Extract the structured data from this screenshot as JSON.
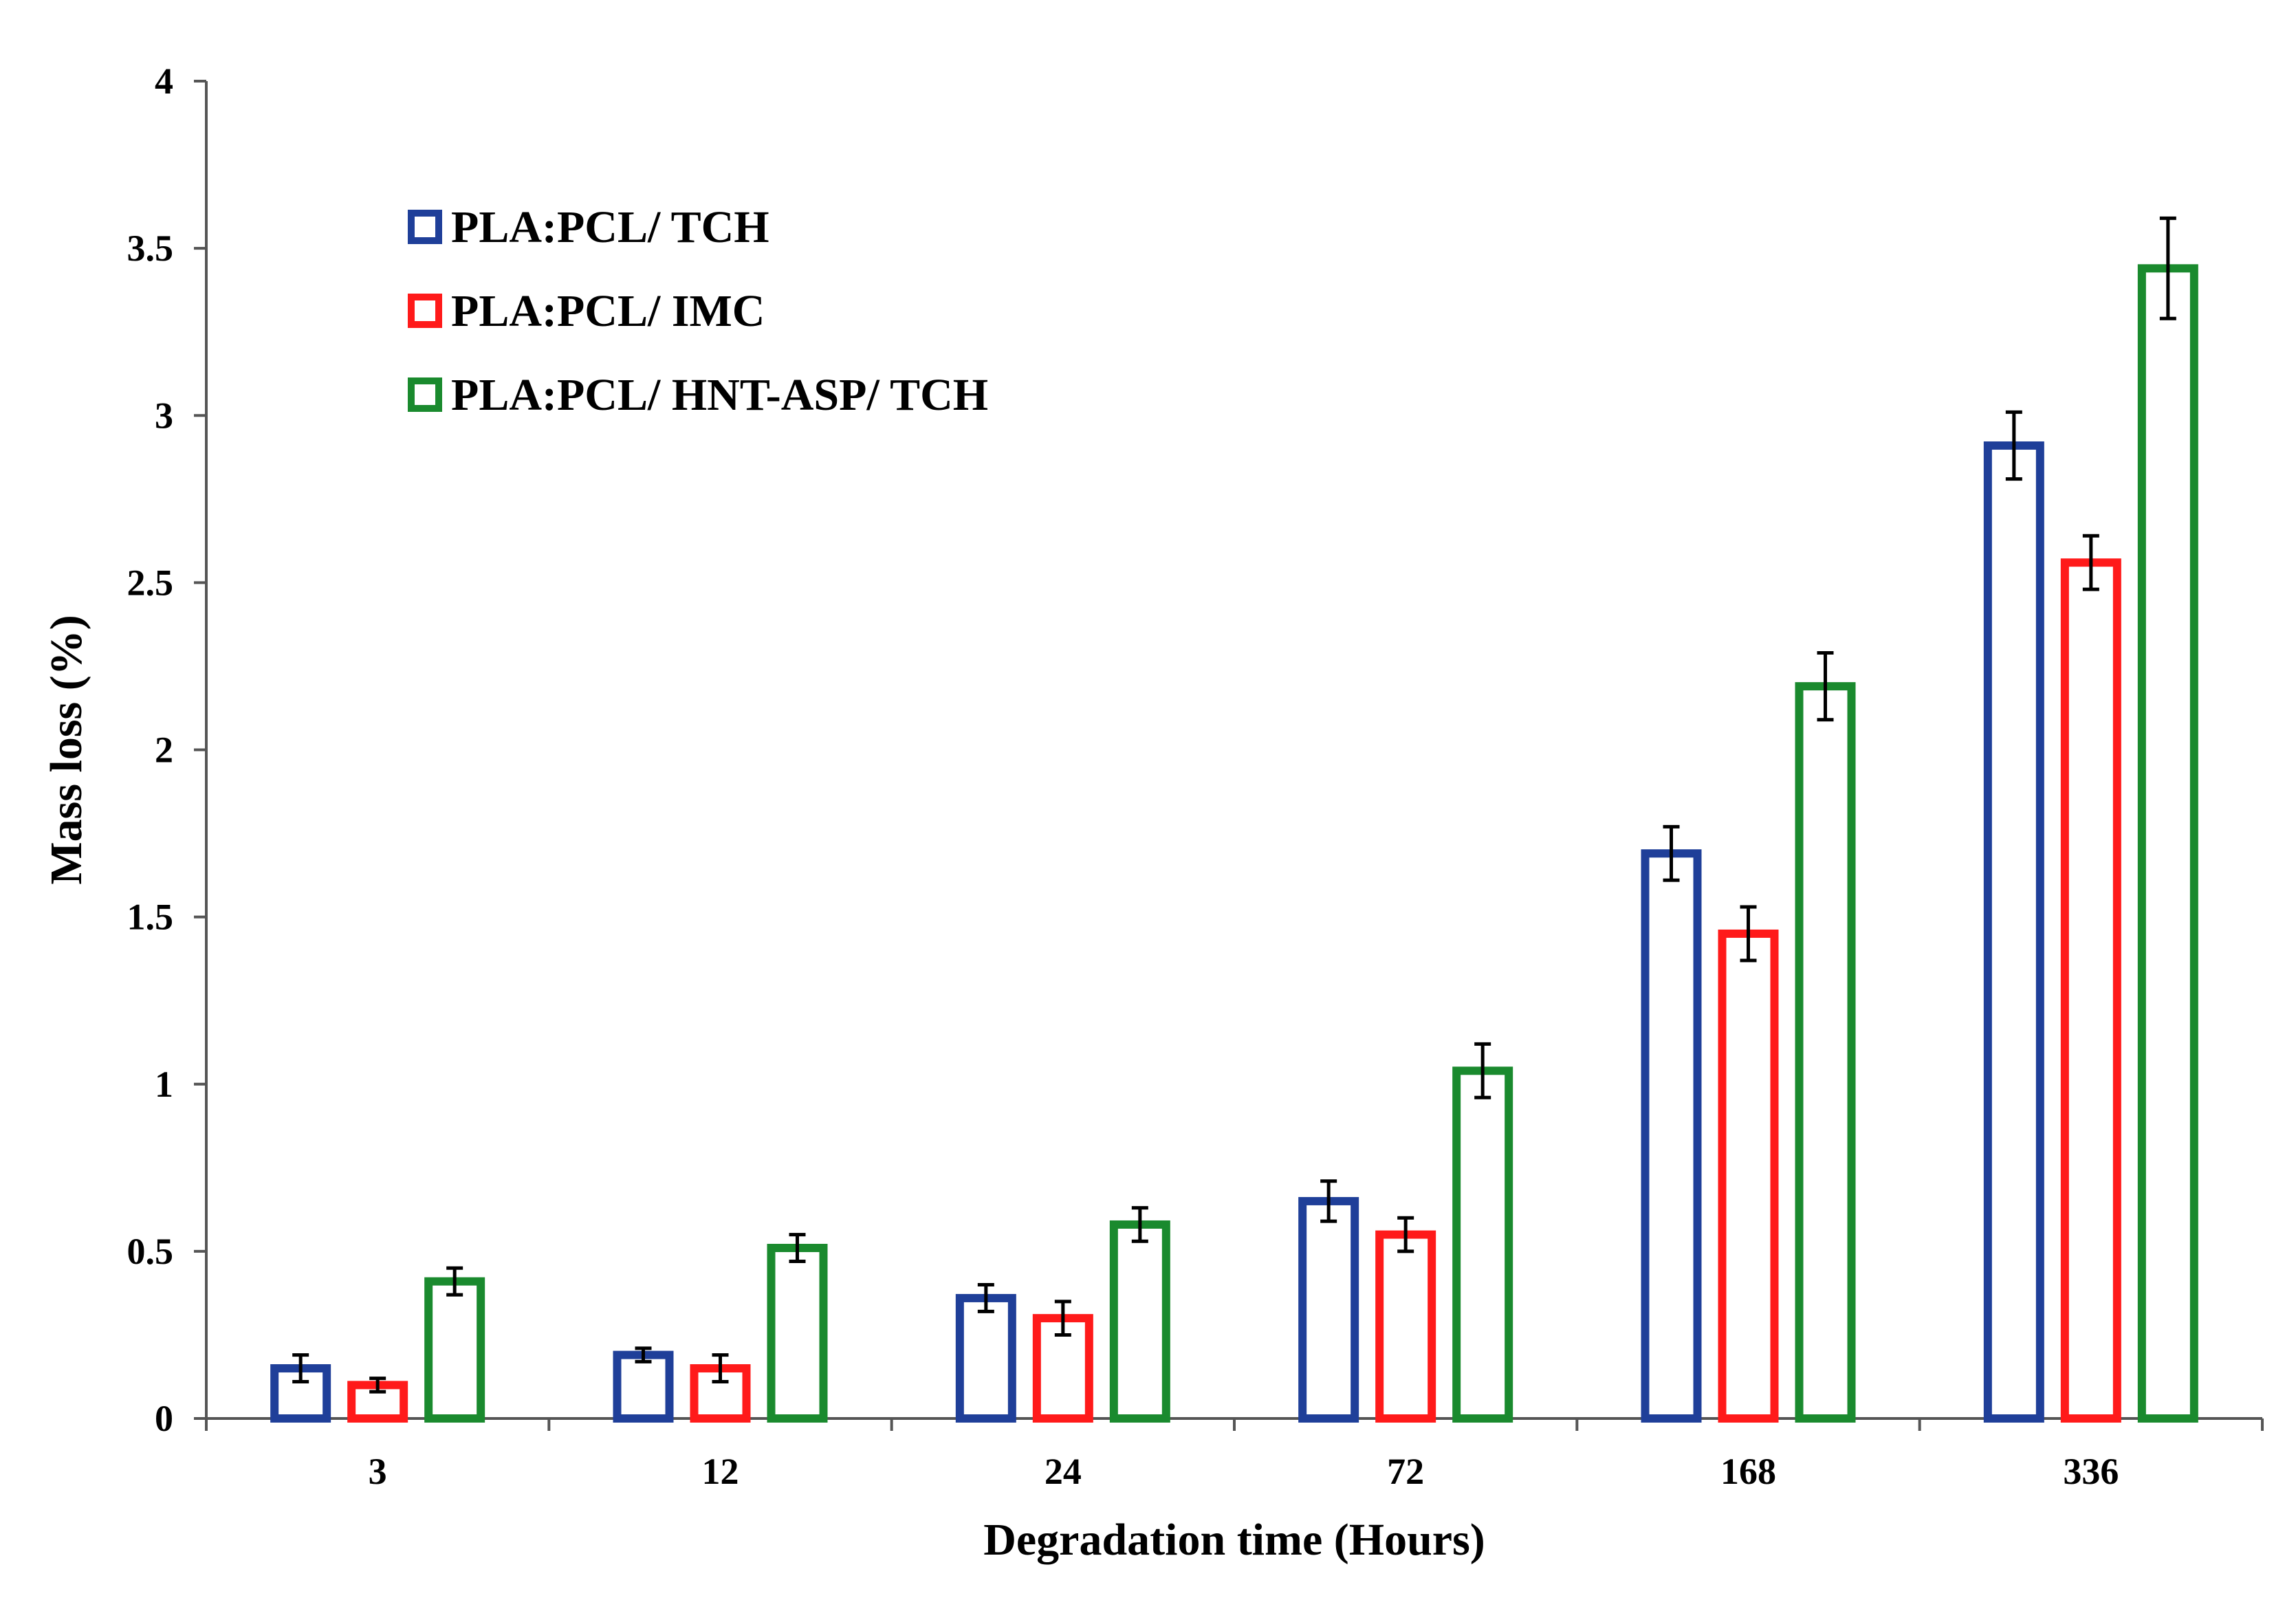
{
  "chart_data": {
    "type": "bar",
    "title": "",
    "xlabel": "Degradation time (Hours)",
    "ylabel": "Mass loss (%)",
    "ylim": [
      0,
      4
    ],
    "yticks": [
      "0",
      "0.5",
      "1",
      "1.5",
      "2",
      "2.5",
      "3",
      "3.5",
      "4"
    ],
    "categories": [
      "3",
      "12",
      "24",
      "72",
      "168",
      "336"
    ],
    "grid": false,
    "legend_position": "top-left",
    "series": [
      {
        "name": "PLA:PCL/ TCH",
        "color": "#1f3f99",
        "values": [
          0.15,
          0.19,
          0.36,
          0.65,
          1.69,
          2.91
        ],
        "errors": [
          0.04,
          0.02,
          0.04,
          0.06,
          0.08,
          0.1
        ]
      },
      {
        "name": "PLA:PCL/ IMC",
        "color": "#ff1a1a",
        "values": [
          0.1,
          0.15,
          0.3,
          0.55,
          1.45,
          2.56
        ],
        "errors": [
          0.02,
          0.04,
          0.05,
          0.05,
          0.08,
          0.08
        ]
      },
      {
        "name": "PLA:PCL/ HNT-ASP/ TCH",
        "color": "#1a8a2e",
        "values": [
          0.41,
          0.51,
          0.58,
          1.04,
          2.19,
          3.44
        ],
        "errors": [
          0.04,
          0.04,
          0.05,
          0.08,
          0.1,
          0.15
        ]
      }
    ]
  }
}
